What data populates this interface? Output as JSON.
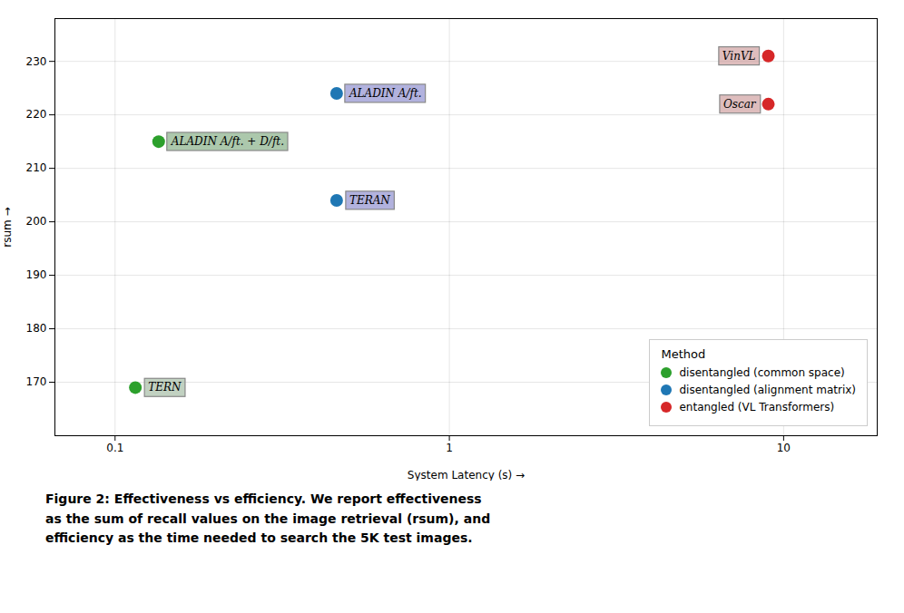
{
  "chart_data": {
    "type": "scatter",
    "xlabel": "System Latency (s)",
    "ylabel": "rsum",
    "log": "x",
    "xlim": [
      0.066069344800759,
      19.054607179632
    ],
    "xticks": [
      0.1,
      1,
      10
    ],
    "ylim": [
      160,
      238
    ],
    "yticks": [
      170,
      180,
      190,
      200,
      210,
      220,
      230
    ],
    "grid": true,
    "legend": "lower right",
    "legend_title": "Method",
    "series": [
      {
        "name": "disentangled (common space)",
        "color": "#2ca02c",
        "x": [
          0.115,
          0.135
        ],
        "values": [
          169,
          215
        ],
        "labels": [
          "TERN",
          "ALADIN A/ft. + D/ft."
        ],
        "label_colors": [
          "#a0b8a0",
          "#7faa7f"
        ]
      },
      {
        "name": "disentangled (alignment matrix)",
        "color": "#1f77b4",
        "x": [
          0.46,
          0.46
        ],
        "values": [
          224,
          204
        ],
        "labels": [
          "ALADIN A/ft.",
          "TERAN"
        ],
        "label_colors": [
          "#8888cc",
          "#8888cc"
        ]
      },
      {
        "name": "entangled (VL Transformers)",
        "color": "#d62728",
        "x": [
          9.0,
          9.0
        ],
        "values": [
          231,
          222
        ],
        "labels": [
          "VinVL",
          "Oscar"
        ],
        "label_colors": [
          "#cc9999",
          "#cc9999"
        ]
      }
    ],
    "caption": [
      "Figure 2: Effectiveness vs efficiency. We report effectiveness",
      "as the sum of recall values on the image retrieval (rsum), and",
      "efficiency as the time needed to search the 5K test images."
    ]
  }
}
